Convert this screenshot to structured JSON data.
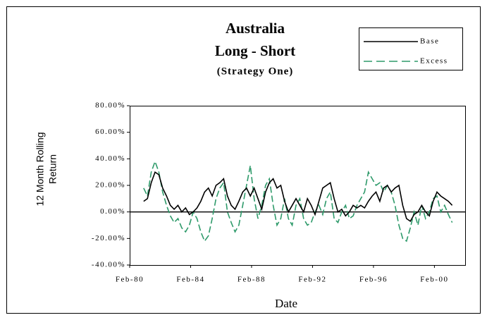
{
  "chart_data": {
    "type": "line",
    "title": [
      "Australia",
      "Long - Short"
    ],
    "subtitle": "(Strategy One)",
    "xlabel": "Date",
    "ylabel": [
      "12 Month Rolling",
      "Return"
    ],
    "x": [
      1981,
      1981.25,
      1981.5,
      1981.75,
      1982,
      1982.25,
      1982.5,
      1982.75,
      1983,
      1983.25,
      1983.5,
      1983.75,
      1984,
      1984.25,
      1984.5,
      1984.75,
      1985,
      1985.25,
      1985.5,
      1985.75,
      1986,
      1986.25,
      1986.5,
      1986.75,
      1987,
      1987.25,
      1987.5,
      1987.75,
      1988,
      1988.25,
      1988.5,
      1988.75,
      1989,
      1989.25,
      1989.5,
      1989.75,
      1990,
      1990.25,
      1990.5,
      1990.75,
      1991,
      1991.25,
      1991.5,
      1991.75,
      1992,
      1992.25,
      1992.5,
      1992.75,
      1993,
      1993.25,
      1993.5,
      1993.75,
      1994,
      1994.25,
      1994.5,
      1994.75,
      1995,
      1995.25,
      1995.5,
      1995.75,
      1996,
      1996.25,
      1996.5,
      1996.75,
      1997,
      1997.25,
      1997.5,
      1997.75,
      1998,
      1998.25,
      1998.5,
      1998.75,
      1999,
      1999.25,
      1999.5,
      1999.75,
      2000,
      2000.25,
      2000.5,
      2000.75,
      2001,
      2001.25
    ],
    "series": [
      {
        "name": "Base",
        "color": "#000000",
        "dash": false,
        "values": [
          8,
          10,
          22,
          30,
          28,
          18,
          12,
          5,
          2,
          5,
          0,
          3,
          -2,
          0,
          3,
          8,
          15,
          18,
          12,
          20,
          22,
          25,
          12,
          5,
          2,
          8,
          15,
          18,
          12,
          18,
          10,
          2,
          15,
          22,
          25,
          18,
          20,
          8,
          0,
          5,
          10,
          5,
          0,
          10,
          5,
          -2,
          8,
          18,
          20,
          22,
          10,
          0,
          2,
          -3,
          0,
          5,
          3,
          5,
          3,
          8,
          12,
          15,
          8,
          18,
          20,
          15,
          18,
          20,
          5,
          -5,
          -7,
          -2,
          0,
          5,
          0,
          -3,
          8,
          15,
          12,
          10,
          8,
          5
        ]
      },
      {
        "name": "Excess",
        "color": "#2e9a6a",
        "dash": true,
        "values": [
          18,
          12,
          30,
          38,
          30,
          15,
          5,
          -3,
          -8,
          -5,
          -12,
          -15,
          -10,
          0,
          -5,
          -15,
          -22,
          -18,
          -5,
          10,
          18,
          22,
          0,
          -8,
          -15,
          -10,
          5,
          20,
          35,
          10,
          -5,
          5,
          20,
          25,
          5,
          -10,
          -5,
          10,
          -5,
          -10,
          5,
          10,
          -5,
          -10,
          -8,
          0,
          5,
          -2,
          10,
          15,
          -5,
          -8,
          0,
          5,
          -5,
          -3,
          5,
          10,
          15,
          30,
          25,
          20,
          22,
          15,
          20,
          15,
          5,
          -10,
          -20,
          -22,
          -12,
          0,
          -10,
          5,
          -5,
          0,
          10,
          12,
          0,
          5,
          -2,
          -8
        ]
      }
    ],
    "xlim": [
      1980.083,
      2002.1
    ],
    "xticks": [
      {
        "value": 1980.083,
        "label": "Feb-80"
      },
      {
        "value": 1984.083,
        "label": "Feb-84"
      },
      {
        "value": 1988.083,
        "label": "Feb-88"
      },
      {
        "value": 1992.083,
        "label": "Feb-92"
      },
      {
        "value": 1996.083,
        "label": "Feb-96"
      },
      {
        "value": 2000.083,
        "label": "Feb-00"
      }
    ],
    "ylim": [
      -40,
      80
    ],
    "yticks": [
      {
        "value": -40,
        "label": "-40.00%"
      },
      {
        "value": -20,
        "label": "-20.00%"
      },
      {
        "value": 0,
        "label": "0.00%"
      },
      {
        "value": 20,
        "label": "20.00%"
      },
      {
        "value": 40,
        "label": "40.00%"
      },
      {
        "value": 60,
        "label": "60.00%"
      },
      {
        "value": 80,
        "label": "80.00%"
      }
    ],
    "zero_line": true,
    "legend": "top-right"
  }
}
